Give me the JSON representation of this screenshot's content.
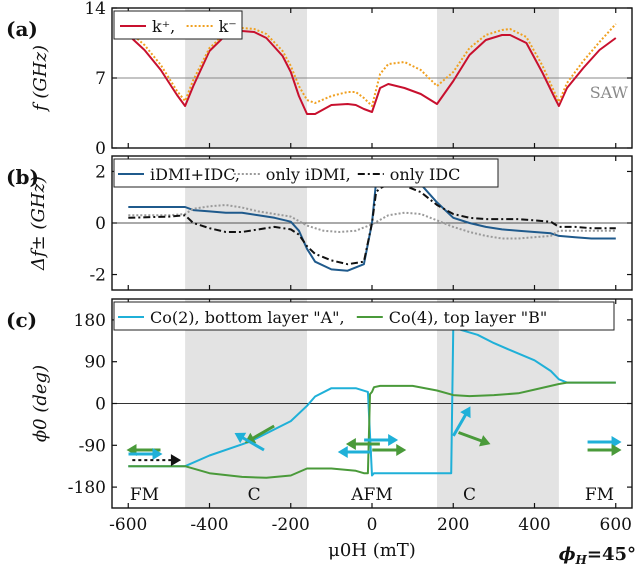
{
  "figure": {
    "footer": {
      "phi_label": "ϕ",
      "phi_sub": "H",
      "phi_value": "=45°"
    }
  },
  "chart_data": [
    {
      "type": "line",
      "panel_label": "(a)",
      "ylabel": "f (GHz)",
      "ylim": [
        0,
        14
      ],
      "xlim": [
        -640,
        640
      ],
      "yticks": [
        0,
        7,
        14
      ],
      "grid": false,
      "legend": "top-left",
      "reference_line": {
        "y": 7,
        "label": "SAW",
        "color": "#8a8a8a"
      },
      "shaded_regions_mT": [
        [
          -460,
          -160
        ],
        [
          160,
          460
        ]
      ],
      "series": [
        {
          "name": "k⁺,",
          "color": "#c8102e",
          "dash": "solid",
          "x": [
            -600,
            -560,
            -520,
            -480,
            -460,
            -440,
            -400,
            -360,
            -320,
            -290,
            -260,
            -220,
            -200,
            -180,
            -160,
            -140,
            -100,
            -60,
            -40,
            -20,
            0,
            20,
            40,
            80,
            120,
            160,
            200,
            240,
            280,
            320,
            340,
            380,
            420,
            450,
            460,
            480,
            520,
            560,
            600
          ],
          "y": [
            11.3,
            9.8,
            7.8,
            5.3,
            4.2,
            6.2,
            9.7,
            11.3,
            11.7,
            11.6,
            11.0,
            9.2,
            7.6,
            5.2,
            3.4,
            3.4,
            4.3,
            4.4,
            4.3,
            3.9,
            3.6,
            6.0,
            6.4,
            6.0,
            5.4,
            4.4,
            6.7,
            9.3,
            10.8,
            11.3,
            11.3,
            10.5,
            7.5,
            5.0,
            4.2,
            6.0,
            8.0,
            9.8,
            11.0
          ]
        },
        {
          "name": "k⁻",
          "color": "#f0a020",
          "dash": "dotted",
          "x": [
            -600,
            -560,
            -520,
            -480,
            -460,
            -440,
            -400,
            -360,
            -320,
            -290,
            -260,
            -220,
            -200,
            -180,
            -160,
            -140,
            -100,
            -60,
            -40,
            -20,
            0,
            20,
            40,
            80,
            120,
            160,
            200,
            240,
            280,
            320,
            340,
            380,
            420,
            450,
            460,
            480,
            520,
            560,
            600
          ],
          "y": [
            11.7,
            10.3,
            8.3,
            5.7,
            4.7,
            6.8,
            10.0,
            11.5,
            12.0,
            11.9,
            11.4,
            9.7,
            8.2,
            6.2,
            4.8,
            4.5,
            5.2,
            5.6,
            5.6,
            5.0,
            4.2,
            7.4,
            8.4,
            8.6,
            7.8,
            6.2,
            7.6,
            10.0,
            11.3,
            11.8,
            11.9,
            11.1,
            8.2,
            5.5,
            4.6,
            6.5,
            8.7,
            10.6,
            12.4
          ]
        }
      ]
    },
    {
      "type": "line",
      "panel_label": "(b)",
      "ylabel": "Δf± (GHz)",
      "ylim": [
        -2.6,
        2.6
      ],
      "xlim": [
        -640,
        640
      ],
      "yticks": [
        -2,
        0,
        2
      ],
      "grid": false,
      "legend": "top",
      "reference_line": {
        "y": 0,
        "color": "#555555"
      },
      "shaded_regions_mT": [
        [
          -460,
          -160
        ],
        [
          160,
          460
        ]
      ],
      "series": [
        {
          "name": "iDMI+IDC,",
          "color": "#1f5a8c",
          "dash": "solid",
          "x": [
            -600,
            -500,
            -460,
            -440,
            -400,
            -360,
            -320,
            -280,
            -240,
            -200,
            -180,
            -160,
            -140,
            -100,
            -60,
            -20,
            0,
            10,
            20,
            40,
            80,
            120,
            160,
            200,
            240,
            280,
            320,
            360,
            400,
            440,
            460,
            500,
            540,
            600
          ],
          "y": [
            0.62,
            0.62,
            0.62,
            0.5,
            0.45,
            0.4,
            0.4,
            0.3,
            0.2,
            0.05,
            -0.3,
            -1.0,
            -1.5,
            -1.8,
            -1.85,
            -1.6,
            0.0,
            1.6,
            1.8,
            1.9,
            1.85,
            1.5,
            0.8,
            0.2,
            0.0,
            -0.15,
            -0.25,
            -0.3,
            -0.35,
            -0.4,
            -0.5,
            -0.55,
            -0.6,
            -0.6
          ]
        },
        {
          "name": "only iDMI,",
          "color": "#9a9a9a",
          "dash": "dotted",
          "x": [
            -600,
            -500,
            -460,
            -440,
            -400,
            -360,
            -320,
            -280,
            -240,
            -200,
            -160,
            -120,
            -80,
            -40,
            0,
            40,
            80,
            120,
            160,
            200,
            240,
            280,
            320,
            360,
            400,
            440,
            460,
            500,
            600
          ],
          "y": [
            0.3,
            0.3,
            0.35,
            0.55,
            0.65,
            0.7,
            0.6,
            0.45,
            0.35,
            0.25,
            -0.1,
            -0.3,
            -0.35,
            -0.3,
            -0.05,
            0.3,
            0.4,
            0.35,
            0.1,
            -0.15,
            -0.35,
            -0.5,
            -0.6,
            -0.6,
            -0.55,
            -0.5,
            -0.3,
            -0.3,
            -0.3
          ]
        },
        {
          "name": "only IDC",
          "color": "#111111",
          "dash": "dashdot",
          "x": [
            -600,
            -500,
            -460,
            -440,
            -400,
            -360,
            -320,
            -280,
            -240,
            -200,
            -180,
            -160,
            -140,
            -100,
            -60,
            -20,
            0,
            10,
            20,
            40,
            80,
            120,
            160,
            200,
            240,
            280,
            320,
            360,
            400,
            440,
            460,
            500,
            540,
            600
          ],
          "y": [
            0.2,
            0.25,
            0.3,
            0.0,
            -0.2,
            -0.35,
            -0.35,
            -0.25,
            -0.15,
            -0.25,
            -0.45,
            -0.9,
            -1.2,
            -1.45,
            -1.6,
            -1.5,
            0.0,
            1.2,
            1.35,
            1.5,
            1.45,
            1.2,
            0.7,
            0.35,
            0.2,
            0.15,
            0.15,
            0.15,
            0.1,
            0.05,
            -0.15,
            -0.15,
            -0.2,
            -0.2
          ]
        }
      ]
    },
    {
      "type": "line",
      "panel_label": "(c)",
      "ylabel": "ϕ0 (deg)",
      "xlabel": "μ0H (mT)",
      "ylim": [
        -225,
        225
      ],
      "xlim": [
        -640,
        640
      ],
      "yticks": [
        -180,
        -90,
        0,
        90,
        180
      ],
      "ytick_labels": [
        "-180",
        "-90",
        "0",
        "90",
        "180"
      ],
      "xticks": [
        -600,
        -400,
        -200,
        0,
        200,
        400,
        600
      ],
      "xtick_labels": [
        "-600",
        "-400",
        "-200",
        "0",
        "200",
        "400",
        "600"
      ],
      "grid": false,
      "legend": "top",
      "reference_line": {
        "y": 0,
        "color": "#333333"
      },
      "shaded_regions_mT": [
        [
          -460,
          -160
        ],
        [
          160,
          460
        ]
      ],
      "annotations": [
        "FM",
        "C",
        "AFM",
        "C",
        "FM"
      ],
      "series": [
        {
          "name": "Co(2), bottom layer \"A\",",
          "color": "#1fb0d8",
          "dash": "solid",
          "x": [
            -600,
            -500,
            -460,
            -400,
            -300,
            -200,
            -160,
            -140,
            -100,
            -40,
            -10,
            0,
            5,
            20,
            50,
            100,
            140,
            180,
            195,
            200,
            220,
            260,
            300,
            340,
            400,
            440,
            460,
            480,
            600
          ],
          "y": [
            -135,
            -135,
            -135,
            -112,
            -82,
            -38,
            -5,
            15,
            33,
            33,
            25,
            -155,
            -150,
            -150,
            -150,
            -150,
            -150,
            -150,
            -150,
            168,
            158,
            148,
            130,
            115,
            93,
            70,
            52,
            45,
            45
          ]
        },
        {
          "name": "Co(4), top layer \"B\"",
          "color": "#4a9a3a",
          "dash": "solid",
          "x": [
            -600,
            -500,
            -460,
            -400,
            -320,
            -260,
            -200,
            -160,
            -100,
            -40,
            -20,
            -10,
            -5,
            0,
            5,
            20,
            40,
            100,
            160,
            200,
            240,
            300,
            360,
            400,
            440,
            460,
            480,
            600
          ],
          "y": [
            -135,
            -135,
            -135,
            -150,
            -158,
            -160,
            -155,
            -140,
            -140,
            -145,
            -150,
            -150,
            20,
            25,
            35,
            38,
            38,
            38,
            28,
            18,
            16,
            18,
            22,
            30,
            38,
            42,
            45,
            45
          ]
        }
      ]
    }
  ]
}
